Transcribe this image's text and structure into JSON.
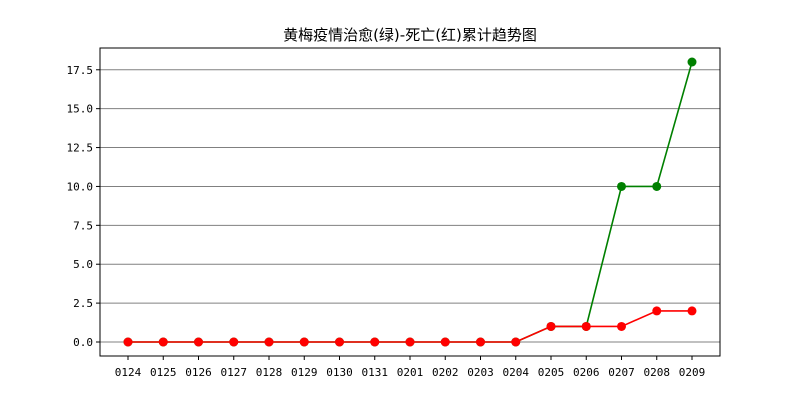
{
  "chart_data": {
    "type": "line",
    "title": "黄梅疫情治愈(绿)-死亡(红)累计趋势图",
    "xlabel": "",
    "ylabel": "",
    "categories": [
      "0124",
      "0125",
      "0126",
      "0127",
      "0128",
      "0129",
      "0130",
      "0131",
      "0201",
      "0202",
      "0203",
      "0204",
      "0205",
      "0206",
      "0207",
      "0208",
      "0209"
    ],
    "ylim": [
      -0.9,
      18.9
    ],
    "yticks": [
      0.0,
      2.5,
      5.0,
      7.5,
      10.0,
      12.5,
      15.0,
      17.5
    ],
    "ytick_labels": [
      "0.0",
      "2.5",
      "5.0",
      "7.5",
      "10.0",
      "12.5",
      "15.0",
      "17.5"
    ],
    "grid": "horizontal",
    "series": [
      {
        "color": "#008000",
        "values": [
          0,
          0,
          0,
          0,
          0,
          0,
          0,
          0,
          0,
          0,
          0,
          0,
          1,
          1,
          10,
          10,
          18
        ]
      },
      {
        "color": "#ff0000",
        "values": [
          0,
          0,
          0,
          0,
          0,
          0,
          0,
          0,
          0,
          0,
          0,
          0,
          1,
          1,
          1,
          2,
          2
        ]
      }
    ]
  }
}
